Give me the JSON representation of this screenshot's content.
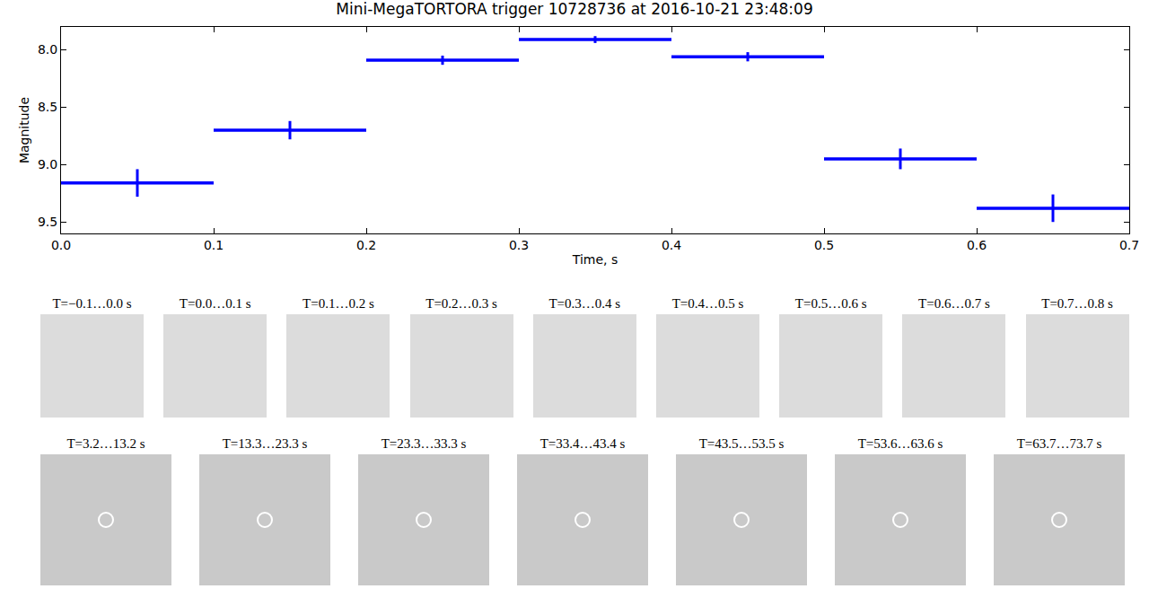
{
  "chart_data": {
    "type": "scatter",
    "title": "Mini-MegaTORTORA trigger 10728736 at 2016-10-21 23:48:09",
    "x_label": "Time, s",
    "y_label": "Magnitude",
    "x": [
      0.05,
      0.15,
      0.25,
      0.35,
      0.45,
      0.55,
      0.65
    ],
    "values": [
      9.16,
      8.7,
      8.09,
      7.91,
      8.06,
      8.95,
      9.38
    ],
    "x_errors": [
      0.05,
      0.05,
      0.05,
      0.05,
      0.05,
      0.05,
      0.05
    ],
    "y_errors": [
      0.12,
      0.08,
      0.04,
      0.03,
      0.04,
      0.09,
      0.12
    ],
    "color": "#0000ff",
    "grid": false,
    "xlim": [
      0,
      0.7
    ],
    "xticks": [
      {
        "value": 0,
        "label": "0.0"
      },
      0.1,
      0.2,
      0.3,
      0.4,
      0.5,
      0.6,
      0.7
    ],
    "ylim": [
      9.6,
      7.8
    ],
    "yticks": [
      {
        "value": 8,
        "label": "8.0"
      },
      8.5,
      {
        "value": 9,
        "label": "9.0"
      },
      9.5
    ]
  },
  "thumbnails": {
    "rows": [
      [
        "T=−0.1…0.0 s",
        "T=0.0…0.1 s",
        "T=0.1…0.2 s",
        "T=0.2…0.3 s",
        "T=0.3…0.4 s",
        "T=0.4…0.5 s",
        "T=0.5…0.6 s",
        "T=0.6…0.7 s",
        "T=0.7…0.8 s"
      ],
      [
        "T=3.2…13.2 s",
        "T=13.3…23.3 s",
        "T=23.3…33.3 s",
        "T=33.4…43.4 s",
        "T=43.5…53.5 s",
        "T=53.6…63.6 s",
        "T=63.7…73.7 s"
      ]
    ]
  }
}
